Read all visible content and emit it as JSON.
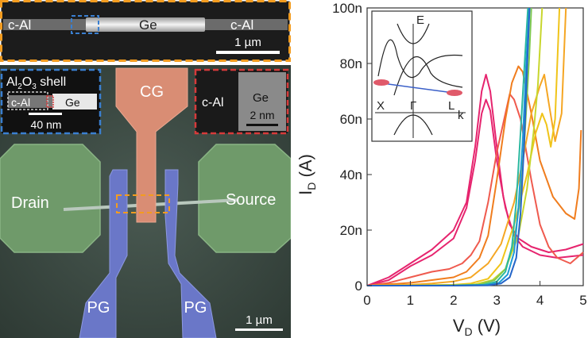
{
  "top_panel": {
    "label_left": "c-Al",
    "label_center": "Ge",
    "label_right": "c-Al",
    "scalebar": "1 µm",
    "border_color": "#f39c1f"
  },
  "device_panel": {
    "gate_cg": "CG",
    "drain": "Drain",
    "source": "Source",
    "pg_left": "PG",
    "pg_right": "PG",
    "scalebar": "1 µm",
    "inset_left": {
      "shell_prefix": "Al",
      "shell_sub1": "2",
      "shell_mid": "O",
      "shell_sub2": "3",
      "shell_suffix": " shell",
      "label_c_al": "c-Al",
      "label_ge": "Ge",
      "scalebar": "40 nm",
      "border_color": "#3a7fd0"
    },
    "inset_right": {
      "label_c_al": "c-Al",
      "label_ge": "Ge",
      "scalebar": "2 nm",
      "border_color": "#d63a3a"
    }
  },
  "band_inset": {
    "axis_e": "E",
    "axis_k": "k",
    "label_x": "X",
    "label_gamma": "Γ",
    "label_l": "L"
  },
  "chart_data": {
    "type": "line",
    "xlabel_main": "V",
    "xlabel_sub": "D",
    "xlabel_unit": " (V)",
    "ylabel_main": "I",
    "ylabel_sub": "D",
    "ylabel_unit": " (A)",
    "xlim": [
      0,
      5
    ],
    "ylim": [
      0,
      100
    ],
    "x_ticks": [
      0,
      1,
      2,
      3,
      4,
      5
    ],
    "x_tick_labels": [
      "0",
      "1",
      "2",
      "3",
      "4",
      "5"
    ],
    "y_ticks": [
      0,
      20,
      40,
      60,
      80,
      100
    ],
    "y_tick_labels": [
      "0",
      "20n",
      "40n",
      "60n",
      "80n",
      "100n"
    ],
    "series": [
      {
        "color": "#e6246e",
        "points": [
          [
            0,
            0
          ],
          [
            0.5,
            3
          ],
          [
            1,
            8
          ],
          [
            1.5,
            13
          ],
          [
            2,
            20
          ],
          [
            2.3,
            30
          ],
          [
            2.5,
            50
          ],
          [
            2.65,
            70
          ],
          [
            2.75,
            76
          ],
          [
            2.85,
            70
          ],
          [
            3,
            50
          ],
          [
            3.15,
            32
          ],
          [
            3.3,
            22
          ],
          [
            3.5,
            17
          ],
          [
            3.8,
            14
          ],
          [
            4.2,
            12
          ],
          [
            4.6,
            13
          ],
          [
            5,
            15
          ]
        ]
      },
      {
        "color": "#e6246e",
        "points": [
          [
            0,
            0
          ],
          [
            0.5,
            2
          ],
          [
            1,
            7
          ],
          [
            1.5,
            11
          ],
          [
            2,
            17
          ],
          [
            2.3,
            28
          ],
          [
            2.5,
            45
          ],
          [
            2.65,
            62
          ],
          [
            2.75,
            67
          ],
          [
            2.85,
            63
          ],
          [
            3,
            45
          ],
          [
            3.2,
            28
          ],
          [
            3.4,
            18
          ],
          [
            3.6,
            14
          ],
          [
            4,
            11
          ],
          [
            4.4,
            10
          ],
          [
            5,
            11
          ]
        ]
      },
      {
        "color": "#ef5a4e",
        "points": [
          [
            0,
            0
          ],
          [
            0.5,
            1
          ],
          [
            1,
            3
          ],
          [
            1.5,
            5
          ],
          [
            1.9,
            6
          ],
          [
            2.2,
            8
          ],
          [
            2.4,
            11
          ],
          [
            2.6,
            16
          ],
          [
            2.8,
            30
          ],
          [
            3,
            48
          ],
          [
            3.2,
            62
          ],
          [
            3.3,
            69
          ],
          [
            3.4,
            67
          ],
          [
            3.55,
            60
          ],
          [
            3.8,
            38
          ],
          [
            4,
            22
          ],
          [
            4.2,
            14
          ],
          [
            4.4,
            10
          ],
          [
            4.7,
            8
          ],
          [
            5,
            12
          ]
        ]
      },
      {
        "color": "#f07d1e",
        "points": [
          [
            0,
            0
          ],
          [
            0.5,
            0.5
          ],
          [
            1,
            1
          ],
          [
            1.5,
            2
          ],
          [
            2,
            3
          ],
          [
            2.3,
            5
          ],
          [
            2.6,
            10
          ],
          [
            2.8,
            18
          ],
          [
            3,
            38
          ],
          [
            3.2,
            60
          ],
          [
            3.35,
            73
          ],
          [
            3.5,
            79
          ],
          [
            3.6,
            77
          ],
          [
            3.8,
            62
          ],
          [
            4,
            45
          ],
          [
            4.3,
            32
          ],
          [
            4.6,
            26
          ],
          [
            4.8,
            24
          ],
          [
            4.9,
            35
          ],
          [
            4.95,
            56
          ]
        ]
      },
      {
        "color": "#f5a623",
        "points": [
          [
            0,
            0
          ],
          [
            1,
            0.3
          ],
          [
            1.5,
            0.8
          ],
          [
            2,
            1.5
          ],
          [
            2.4,
            3
          ],
          [
            2.8,
            8
          ],
          [
            3.1,
            15
          ],
          [
            3.4,
            30
          ],
          [
            3.6,
            45
          ],
          [
            3.8,
            62
          ],
          [
            4,
            72
          ],
          [
            4.1,
            76
          ],
          [
            4.2,
            66
          ],
          [
            4.35,
            52
          ],
          [
            4.5,
            62
          ],
          [
            4.6,
            100
          ]
        ]
      },
      {
        "color": "#f0c419",
        "points": [
          [
            0,
            0
          ],
          [
            1,
            0.1
          ],
          [
            2,
            0.3
          ],
          [
            2.4,
            0.8
          ],
          [
            2.8,
            2.5
          ],
          [
            3.1,
            8
          ],
          [
            3.4,
            22
          ],
          [
            3.7,
            40
          ],
          [
            3.9,
            55
          ],
          [
            4.05,
            62
          ],
          [
            4.15,
            58
          ],
          [
            4.25,
            50
          ],
          [
            4.35,
            60
          ],
          [
            4.45,
            100
          ]
        ]
      },
      {
        "color": "#c8d62d",
        "points": [
          [
            0,
            0
          ],
          [
            1,
            0.05
          ],
          [
            2,
            0.2
          ],
          [
            2.5,
            0.5
          ],
          [
            2.9,
            2
          ],
          [
            3.2,
            6
          ],
          [
            3.5,
            18
          ],
          [
            3.7,
            35
          ],
          [
            3.85,
            55
          ],
          [
            3.95,
            72
          ],
          [
            4.05,
            100
          ]
        ]
      },
      {
        "color": "#7ec850",
        "points": [
          [
            0,
            0
          ],
          [
            1,
            0
          ],
          [
            2,
            0.1
          ],
          [
            2.6,
            0.4
          ],
          [
            2.95,
            2
          ],
          [
            3.2,
            6
          ],
          [
            3.4,
            16
          ],
          [
            3.55,
            32
          ],
          [
            3.65,
            55
          ],
          [
            3.75,
            82
          ],
          [
            3.8,
            100
          ]
        ]
      },
      {
        "color": "#2ab8a0",
        "points": [
          [
            0,
            0
          ],
          [
            1,
            0
          ],
          [
            2,
            0.05
          ],
          [
            2.7,
            0.3
          ],
          [
            3,
            1.5
          ],
          [
            3.2,
            5
          ],
          [
            3.35,
            14
          ],
          [
            3.45,
            30
          ],
          [
            3.55,
            55
          ],
          [
            3.65,
            82
          ],
          [
            3.72,
            100
          ]
        ]
      },
      {
        "color": "#1e9ad6",
        "points": [
          [
            0,
            0
          ],
          [
            1,
            0
          ],
          [
            2,
            0
          ],
          [
            2.75,
            0.2
          ],
          [
            3.05,
            1
          ],
          [
            3.25,
            4
          ],
          [
            3.4,
            12
          ],
          [
            3.5,
            28
          ],
          [
            3.6,
            52
          ],
          [
            3.68,
            80
          ],
          [
            3.75,
            100
          ]
        ]
      },
      {
        "color": "#2566c9",
        "points": [
          [
            0,
            0
          ],
          [
            1,
            0
          ],
          [
            2,
            0
          ],
          [
            2.8,
            0.1
          ],
          [
            3.1,
            0.8
          ],
          [
            3.3,
            3
          ],
          [
            3.45,
            10
          ],
          [
            3.55,
            26
          ],
          [
            3.63,
            50
          ],
          [
            3.7,
            78
          ],
          [
            3.76,
            100
          ]
        ]
      }
    ]
  }
}
